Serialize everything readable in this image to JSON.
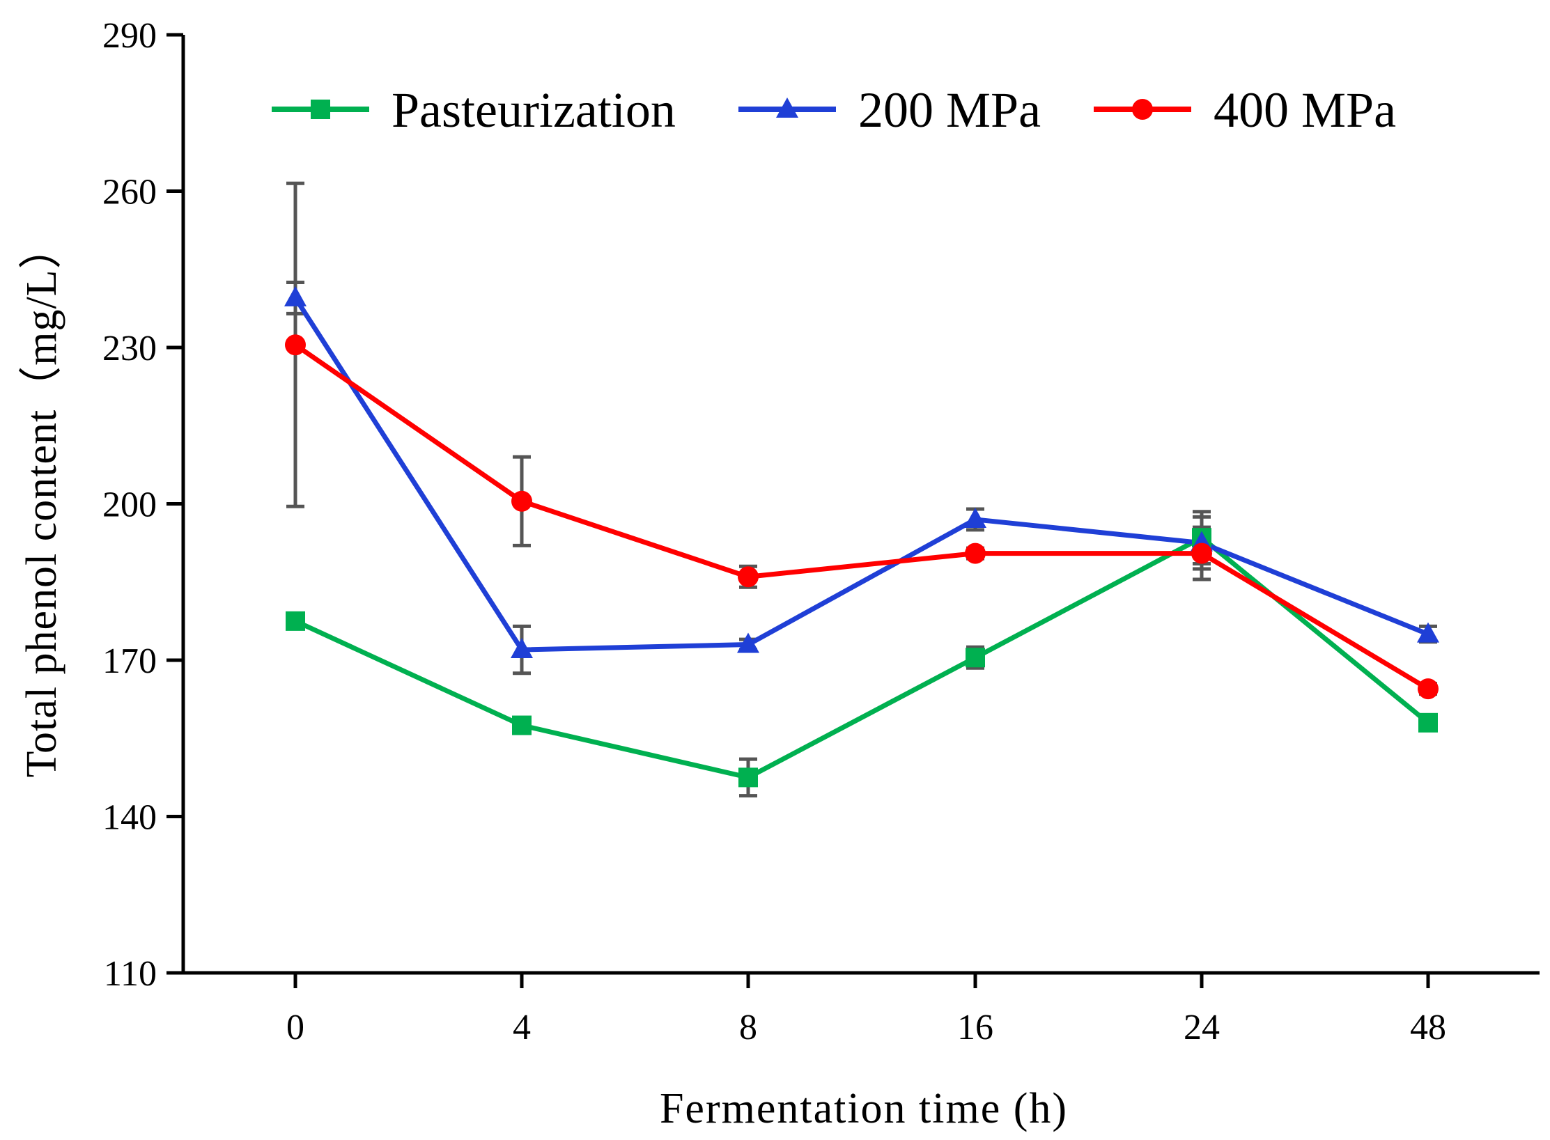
{
  "chart_data": {
    "type": "line",
    "title": "",
    "xlabel": "Fermentation time (h)",
    "ylabel": "Total phenol content（mg/L）",
    "categories": [
      "0",
      "4",
      "8",
      "16",
      "24",
      "48"
    ],
    "ylim": [
      110,
      290
    ],
    "yticks": [
      110,
      140,
      170,
      200,
      230,
      260,
      290
    ],
    "legend_position": "top",
    "grid": false,
    "error_bar_color": "#555555",
    "series": [
      {
        "name": "Pasteurization",
        "color": "#00b050",
        "marker": "square",
        "values": [
          177.5,
          157.5,
          147.5,
          170.5,
          193.5,
          158
        ],
        "errors": [
          1,
          1,
          3.5,
          2,
          5,
          1
        ]
      },
      {
        "name": "200 MPa",
        "color": "#1f3fd6",
        "marker": "triangle",
        "values": [
          239.5,
          172,
          173,
          197,
          192.5,
          175
        ],
        "errors": [
          3,
          4.5,
          1,
          2,
          5,
          1.5
        ]
      },
      {
        "name": "400 MPa",
        "color": "#ff0000",
        "marker": "circle",
        "values": [
          230.5,
          200.5,
          186,
          190.5,
          190.5,
          164.5
        ],
        "errors": [
          31,
          8.5,
          2,
          1,
          5,
          1
        ]
      }
    ]
  }
}
